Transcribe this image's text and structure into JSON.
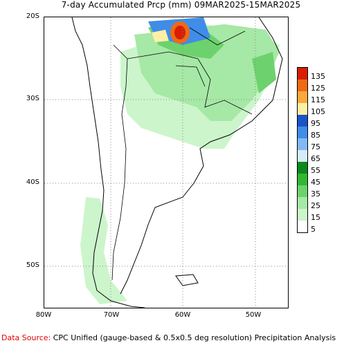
{
  "title": "7-day Accumulated Prcp (mm) 09MAR2025-15MAR2025",
  "lat_labels": [
    "20S",
    "30S",
    "40S",
    "50S"
  ],
  "lon_labels": [
    "80W",
    "70W",
    "60W",
    "50W"
  ],
  "legend": {
    "levels": [
      "135",
      "125",
      "115",
      "105",
      "95",
      "85",
      "75",
      "65",
      "55",
      "45",
      "35",
      "25",
      "15",
      "5"
    ],
    "colors": [
      "#d81e05",
      "#f06a14",
      "#fba93a",
      "#fdf0a6",
      "#1a55c8",
      "#3f8de8",
      "#82b9f5",
      "#d7ecfb",
      "#0c8a1c",
      "#32b832",
      "#6dd26d",
      "#a6e8a6",
      "#ccf5cc",
      "#ffffff"
    ]
  },
  "source": {
    "lead": "Data Source:",
    "text": " CPC Unified (gauge-based & 0.5x0.5 deg resolution) Precipitation Analysis"
  }
}
